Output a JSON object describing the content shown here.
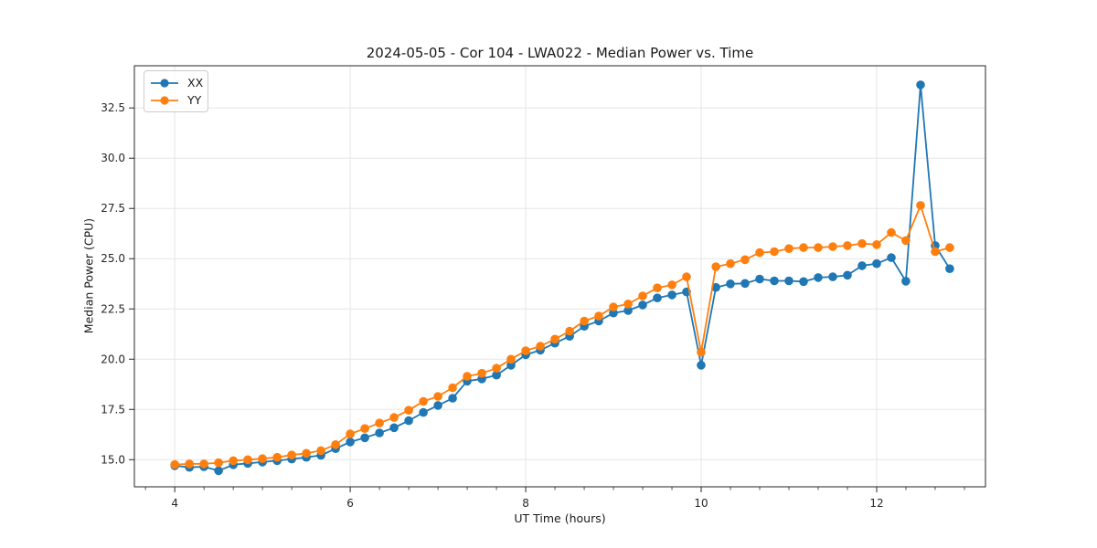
{
  "chart_data": {
    "type": "line",
    "title": "2024-05-05 - Cor 104 - LWA022 - Median Power vs. Time",
    "xlabel": "UT Time (hours)",
    "ylabel": "Median Power (CPU)",
    "xlim": [
      3.54,
      13.24
    ],
    "ylim": [
      13.65,
      34.6
    ],
    "x_ticks": [
      4,
      6,
      8,
      10,
      12
    ],
    "y_ticks": [
      15.0,
      17.5,
      20.0,
      22.5,
      25.0,
      27.5,
      30.0,
      32.5
    ],
    "x_minor_tick_step": 0.333,
    "grid": true,
    "legend_position": "upper left",
    "colors": {
      "grid": "#e5e5e5",
      "axis": "#262626",
      "text": "#1a1a1a"
    },
    "x": [
      4.0,
      4.167,
      4.333,
      4.5,
      4.667,
      4.833,
      5.0,
      5.167,
      5.333,
      5.5,
      5.667,
      5.833,
      6.0,
      6.167,
      6.333,
      6.5,
      6.667,
      6.833,
      7.0,
      7.167,
      7.333,
      7.5,
      7.667,
      7.833,
      8.0,
      8.167,
      8.333,
      8.5,
      8.667,
      8.833,
      9.0,
      9.167,
      9.333,
      9.5,
      9.667,
      9.833,
      10.0,
      10.167,
      10.333,
      10.5,
      10.667,
      10.833,
      11.0,
      11.167,
      11.333,
      11.5,
      11.667,
      11.833,
      12.0,
      12.167,
      12.333,
      12.5,
      12.667,
      12.833
    ],
    "series": [
      {
        "name": "XX",
        "color": "#1f77b4",
        "values": [
          14.7,
          14.62,
          14.65,
          14.45,
          14.75,
          14.82,
          14.88,
          14.95,
          15.03,
          15.12,
          15.22,
          15.55,
          15.88,
          16.09,
          16.33,
          16.59,
          16.94,
          17.35,
          17.7,
          18.06,
          18.91,
          19.02,
          19.21,
          19.7,
          20.22,
          20.45,
          20.8,
          21.14,
          21.64,
          21.9,
          22.3,
          22.42,
          22.7,
          23.05,
          23.2,
          23.35,
          19.7,
          23.57,
          23.75,
          23.77,
          23.99,
          23.9,
          23.9,
          23.86,
          24.06,
          24.1,
          24.18,
          24.65,
          24.75,
          25.05,
          23.88,
          33.65,
          25.65,
          24.5
        ]
      },
      {
        "name": "YY",
        "color": "#ff7f0e",
        "values": [
          14.76,
          14.79,
          14.79,
          14.85,
          14.95,
          15.0,
          15.05,
          15.12,
          15.23,
          15.32,
          15.45,
          15.75,
          16.28,
          16.55,
          16.82,
          17.1,
          17.46,
          17.9,
          18.15,
          18.58,
          19.15,
          19.3,
          19.55,
          20.0,
          20.42,
          20.65,
          21.0,
          21.4,
          21.9,
          22.15,
          22.6,
          22.75,
          23.15,
          23.55,
          23.7,
          24.1,
          20.35,
          24.6,
          24.75,
          24.95,
          25.3,
          25.35,
          25.5,
          25.55,
          25.55,
          25.6,
          25.65,
          25.75,
          25.7,
          26.3,
          25.9,
          27.65,
          25.35,
          25.55
        ]
      }
    ]
  }
}
